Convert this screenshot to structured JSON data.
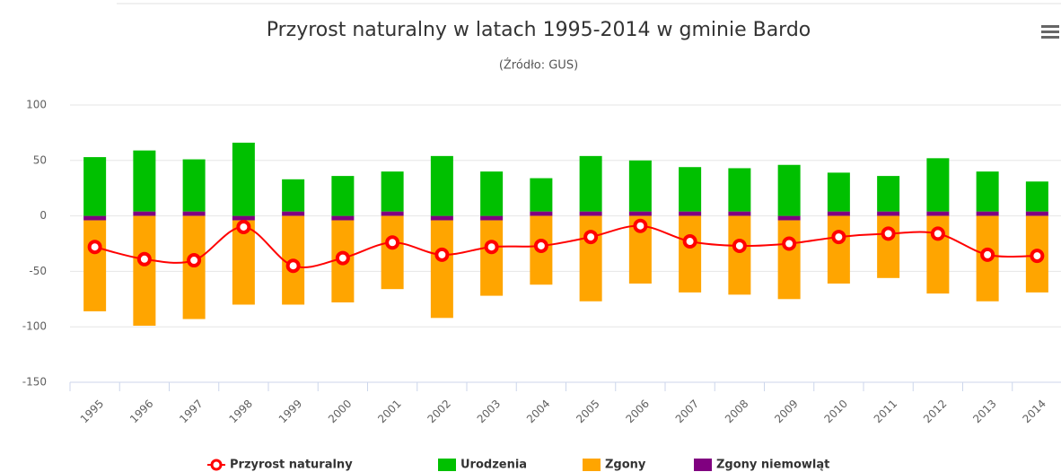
{
  "chart_data": {
    "type": "bar",
    "title": "Przyrost naturalny w latach 1995-2014 w gminie Bardo",
    "subtitle": "(Źródło: GUS)",
    "categories": [
      "1995",
      "1996",
      "1997",
      "1998",
      "1999",
      "2000",
      "2001",
      "2002",
      "2003",
      "2004",
      "2005",
      "2006",
      "2007",
      "2008",
      "2009",
      "2010",
      "2011",
      "2012",
      "2013",
      "2014"
    ],
    "ylim": [
      -150,
      100
    ],
    "yticks": [
      -150,
      -100,
      -50,
      0,
      50,
      100
    ],
    "grid": true,
    "series": [
      {
        "name": "Przyrost naturalny",
        "type": "line",
        "color": "#ff0000",
        "values": [
          -28,
          -39,
          -40,
          -10,
          -45,
          -38,
          -24,
          -35,
          -28,
          -27,
          -19,
          -9,
          -23,
          -27,
          -25,
          -19,
          -16,
          -16,
          -35,
          -36
        ]
      },
      {
        "name": "Urodzenia",
        "color": "#00c000",
        "values": [
          53,
          55,
          47,
          66,
          29,
          36,
          36,
          54,
          40,
          30,
          50,
          46,
          40,
          39,
          46,
          35,
          32,
          48,
          36,
          27
        ]
      },
      {
        "name": "Zgony",
        "color": "#ffa500",
        "values": [
          -82,
          -99,
          -93,
          -76,
          -80,
          -74,
          -66,
          -88,
          -68,
          -62,
          -77,
          -61,
          -69,
          -71,
          -71,
          -61,
          -56,
          -70,
          -77,
          -69
        ]
      },
      {
        "name": "Zgony niemowląt",
        "color": "#800080",
        "values": [
          -4,
          4,
          4,
          -4,
          4,
          -4,
          4,
          -4,
          -4,
          4,
          4,
          4,
          4,
          4,
          -4,
          4,
          4,
          4,
          4,
          4
        ]
      }
    ]
  }
}
